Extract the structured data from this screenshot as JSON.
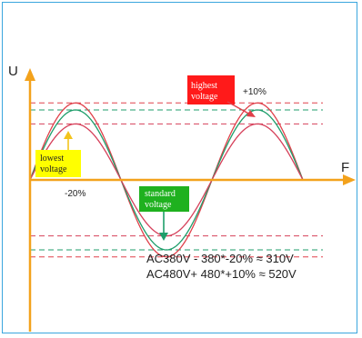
{
  "axes": {
    "y_label": "U",
    "x_label": "F"
  },
  "labels": {
    "highest": "highest voltage",
    "highest_percent": "+10%",
    "lowest_line1": "lowest",
    "lowest_line2": "voltage",
    "lowest_percent": "-20%",
    "standard_line1": "standard",
    "standard_line2": "voltage"
  },
  "formulas": {
    "line1": "AC380V - 380*-20% ≈ 310V",
    "line2": "AC480V+ 480*+10% ≈ 520V"
  },
  "colors": {
    "frame": "#3aa6dd",
    "axis": "#f3a21c",
    "high_curve": "#e0404a",
    "standard_curve": "#1f9e6b",
    "low_curve": "#d6405a",
    "highest_box": "#ff1a1a",
    "lowest_box": "#ffff00",
    "standard_box": "#1fb11f",
    "arrow_high": "#e0404a",
    "arrow_low": "#f3c41c",
    "arrow_standard": "#1f9e6b"
  },
  "waveforms": {
    "highest_amplitude": 1.1,
    "standard_amplitude": 1.0,
    "lowest_amplitude": 0.8
  }
}
